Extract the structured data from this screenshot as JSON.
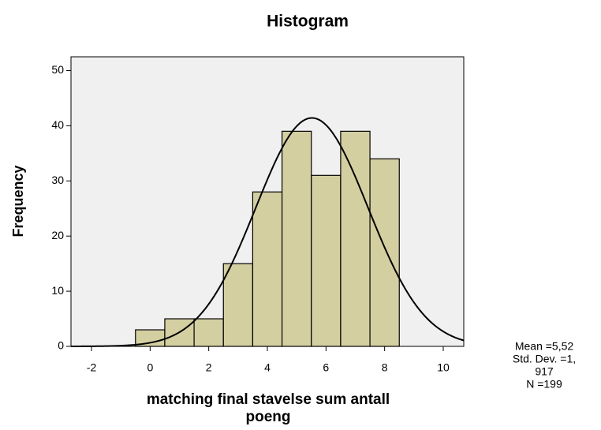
{
  "chart_data": {
    "type": "histogram",
    "title": "Histogram",
    "x_label": [
      "matching final stavelse sum antall",
      "poeng"
    ],
    "y_label": "Frequency",
    "bins": [
      -0.5,
      0.5,
      1.5,
      2.5,
      3.5,
      4.5,
      5.5,
      6.5,
      7.5,
      8.5
    ],
    "values": [
      3,
      5,
      5,
      15,
      28,
      39,
      31,
      39,
      34
    ],
    "color": "#d4cfa1",
    "xlim": [
      -2.7,
      10.7
    ],
    "xticks": [
      -2,
      0,
      2,
      4,
      6,
      8,
      10
    ],
    "ylim": [
      0,
      52.5
    ],
    "yticks": [
      0,
      10,
      20,
      30,
      40,
      50
    ],
    "normal_curve": {
      "mean": {
        "value": 5.52,
        "label": "Mean =5,52"
      },
      "sd": {
        "value": 1.917,
        "label": [
          "Std. Dev. =1,",
          "917"
        ]
      },
      "n": {
        "value": 199,
        "label": "N =199"
      }
    }
  }
}
